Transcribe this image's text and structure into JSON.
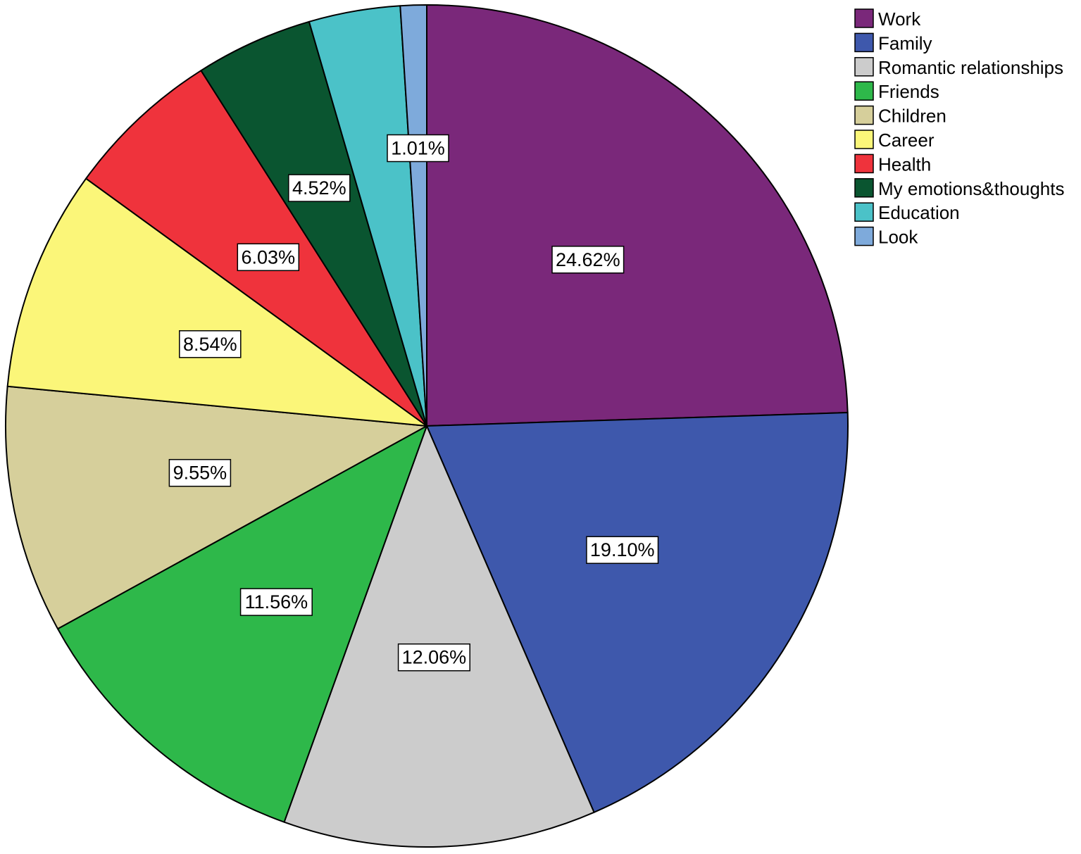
{
  "chart_data": {
    "type": "pie",
    "title": "",
    "legend_position": "top-right",
    "start_angle_deg": 0,
    "direction": "clockwise",
    "slices": [
      {
        "label": "Work",
        "value": 24.62,
        "display": "24.62%",
        "color": "#7a287a"
      },
      {
        "label": "Family",
        "value": 19.1,
        "display": "19.10%",
        "color": "#3e58ac"
      },
      {
        "label": "Romantic relationships",
        "value": 12.06,
        "display": "12.06%",
        "color": "#cccccc"
      },
      {
        "label": "Friends",
        "value": 11.56,
        "display": "11.56%",
        "color": "#2eb84a"
      },
      {
        "label": "Children",
        "value": 9.55,
        "display": "9.55%",
        "color": "#d6cf9b"
      },
      {
        "label": "Career",
        "value": 8.54,
        "display": "8.54%",
        "color": "#fbf679"
      },
      {
        "label": "Health",
        "value": 6.03,
        "display": "6.03%",
        "color": "#ef333c"
      },
      {
        "label": "My emotions&thoughts",
        "value": 4.52,
        "display": "4.52%",
        "color": "#0a5530"
      },
      {
        "label": "Education",
        "value": 3.52,
        "display": "",
        "color": "#4bc2c8"
      },
      {
        "label": "Look",
        "value": 1.01,
        "display": "1.01%",
        "color": "#7eaadb"
      }
    ]
  }
}
